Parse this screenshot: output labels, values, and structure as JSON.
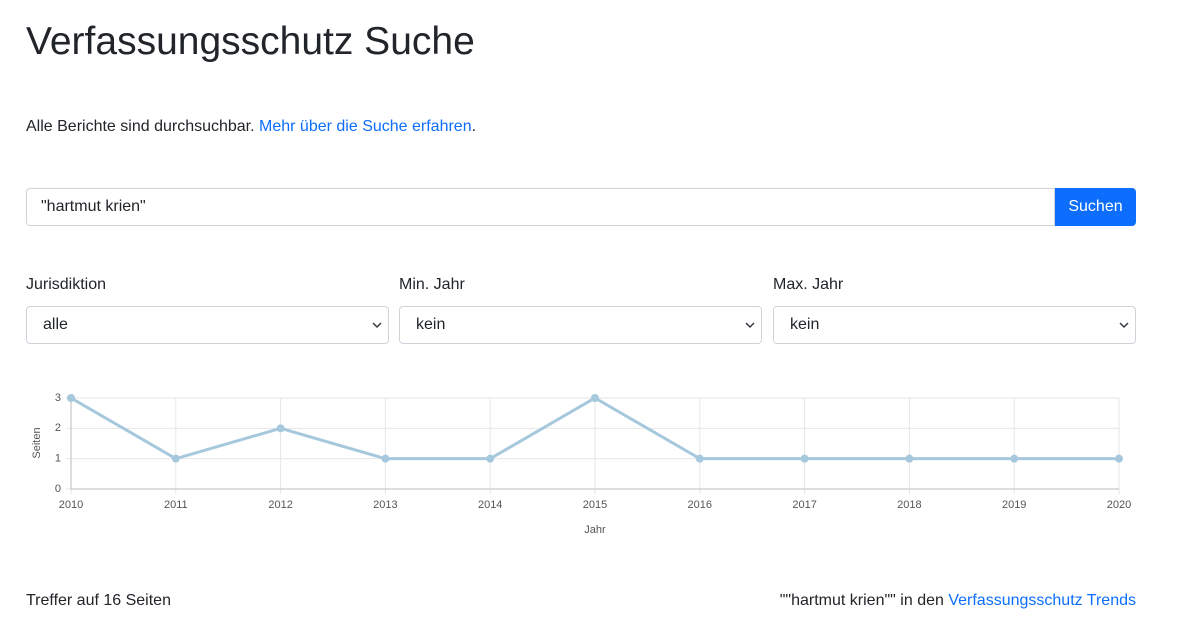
{
  "header": {
    "title": "Verfassungsschutz Suche"
  },
  "intro": {
    "text": "Alle Berichte sind durchsuchbar.",
    "link": "Mehr über die Suche erfahren",
    "end": "."
  },
  "search": {
    "query": "\"hartmut krien\"",
    "button": "Suchen"
  },
  "filters": [
    {
      "label": "Jurisdiktion",
      "value": "alle"
    },
    {
      "label": "Min. Jahr",
      "value": "kein"
    },
    {
      "label": "Max. Jahr",
      "value": "kein"
    }
  ],
  "chart_data": {
    "type": "line",
    "xlabel": "Jahr",
    "ylabel": "Seiten",
    "categories": [
      "2010",
      "2011",
      "2012",
      "2013",
      "2014",
      "2015",
      "2016",
      "2017",
      "2018",
      "2019",
      "2020"
    ],
    "values": [
      3,
      1,
      2,
      1,
      1,
      3,
      1,
      1,
      1,
      1,
      1
    ],
    "color": "#a6c8dd",
    "ylim": [
      0,
      3
    ],
    "yticks": [
      0,
      1,
      2,
      3
    ],
    "grid": true
  },
  "footer": {
    "hits": "Treffer auf 16 Seiten",
    "query": "\"\"hartmut krien\"\"",
    "middle": "in den",
    "link": "Verfassungsschutz Trends"
  }
}
